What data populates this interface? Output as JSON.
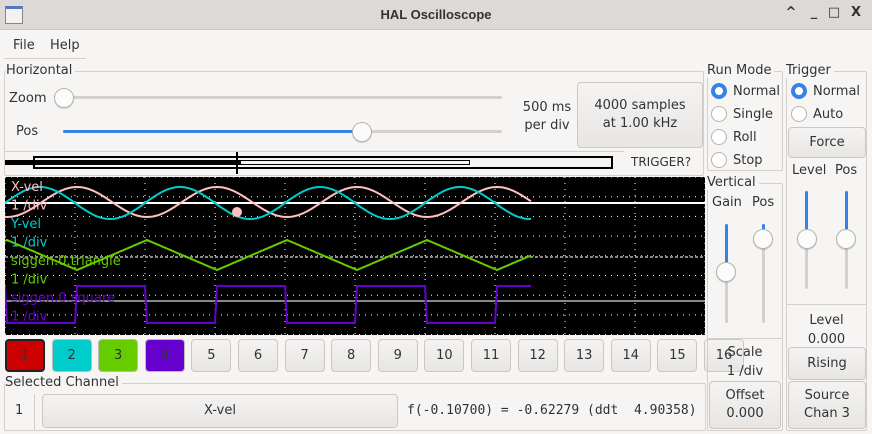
{
  "window": {
    "title": "HAL Oscilloscope",
    "controls": [
      "^",
      "_",
      "□",
      "X"
    ]
  },
  "menu": [
    "File",
    "Help"
  ],
  "horizontal": {
    "label": "Horizontal",
    "zoom_label": "Zoom",
    "pos_label": "Pos",
    "zoom_value": 0.0,
    "pos_value": 0.68,
    "timebase_line1": "500 ms",
    "timebase_line2": "per div",
    "samples_line1": "4000 samples",
    "samples_line2": "at 1.00 kHz",
    "trigger_status": "TRIGGER?"
  },
  "run_mode": {
    "label": "Run Mode",
    "options": [
      "Normal",
      "Single",
      "Roll",
      "Stop"
    ],
    "selected": 0
  },
  "trigger": {
    "label": "Trigger",
    "options": [
      "Normal",
      "Auto"
    ],
    "selected": 0,
    "force_label": "Force",
    "level_label": "Level",
    "pos_label": "Pos",
    "level_slider": 0.5,
    "pos_slider": 0.5,
    "level_caption": "Level",
    "level_value": "0.000",
    "edge_label": "Rising",
    "source_line1": "Source",
    "source_line2": "Chan 3"
  },
  "vertical": {
    "label": "Vertical",
    "gain_label": "Gain",
    "pos_label": "Pos",
    "gain_slider": 0.5,
    "pos_slider": 0.15,
    "scale_label": "Scale",
    "scale_value": "1 /div",
    "offset_label": "Offset",
    "offset_value": "0.000"
  },
  "traces": [
    {
      "name": "X-vel",
      "scale": "1 /div",
      "color": "#ffc0c0"
    },
    {
      "name": "Y-vel",
      "scale": "1 /div",
      "color": "#00cccc"
    },
    {
      "name": "siggen.0.triangle",
      "scale": "1 /div",
      "color": "#66cc00"
    },
    {
      "name": "siggen.0.square",
      "scale": "1 /div",
      "color": "#6600cc"
    }
  ],
  "channels": [
    {
      "label": "1",
      "color": "#cc0000"
    },
    {
      "label": "2",
      "color": "#00cccc"
    },
    {
      "label": "3",
      "color": "#66cc00"
    },
    {
      "label": "4",
      "color": "#6600cc"
    },
    {
      "label": "5"
    },
    {
      "label": "6"
    },
    {
      "label": "7"
    },
    {
      "label": "8"
    },
    {
      "label": "9"
    },
    {
      "label": "10"
    },
    {
      "label": "11"
    },
    {
      "label": "12"
    },
    {
      "label": "13"
    },
    {
      "label": "14"
    },
    {
      "label": "15"
    },
    {
      "label": "16"
    }
  ],
  "selected_channel": {
    "label": "Selected Channel",
    "number": "1",
    "name": "X-vel",
    "readout": "f(-0.10700) = -0.62279 (ddt  4.90358)"
  }
}
